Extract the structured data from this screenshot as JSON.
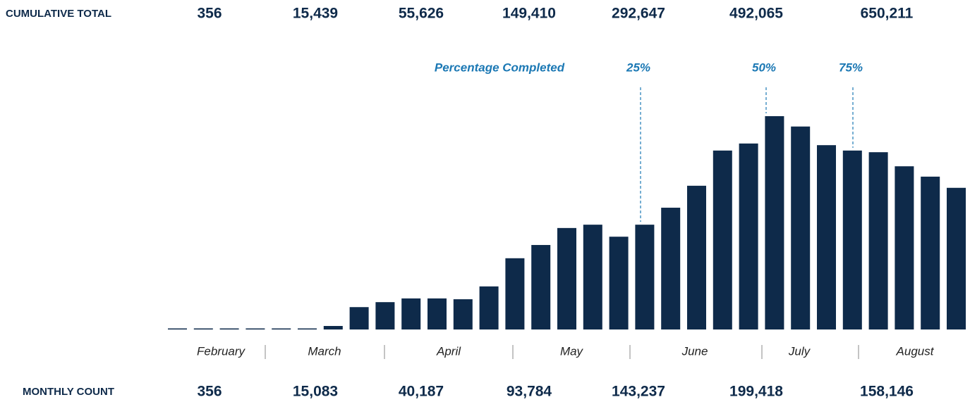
{
  "chart_data": {
    "type": "bar",
    "color": "#0e2a4a",
    "categories": [
      null,
      null,
      null,
      null,
      null,
      null,
      null,
      null,
      null,
      null,
      null,
      null,
      null,
      null,
      null,
      null,
      null,
      null,
      null,
      null,
      null,
      null,
      null,
      null,
      null,
      null,
      null,
      null,
      null,
      null,
      null
    ],
    "values": [
      100,
      100,
      100,
      100,
      100,
      100,
      850,
      5400,
      6600,
      7500,
      7500,
      7300,
      10400,
      17200,
      20400,
      24500,
      25300,
      22400,
      25300,
      29400,
      34700,
      43200,
      44900,
      51500,
      49000,
      44500,
      43200,
      42800,
      39400,
      36900,
      34200
    ],
    "months": [
      "February",
      "March",
      "April",
      "May",
      "June",
      "July",
      "August"
    ],
    "cumulative_total": {
      "label": "CUMULATIVE TOTAL",
      "values": [
        356,
        15439,
        55626,
        149410,
        292647,
        492065,
        650211
      ],
      "value_labels": [
        "356",
        "15,439",
        "55,626",
        "149,410",
        "292,647",
        "492,065",
        "650,211"
      ]
    },
    "monthly_count": {
      "label": "MONTHLY COUNT",
      "values": [
        356,
        15083,
        40187,
        93784,
        143237,
        199418,
        158146
      ],
      "value_labels": [
        "356",
        "15,083",
        "40,187",
        "93,784",
        "143,237",
        "199,418",
        "158,146"
      ]
    },
    "annotation": {
      "label": "Percentage Completed",
      "markers": [
        {
          "value": 25,
          "label": "25%"
        },
        {
          "value": 50,
          "label": "50%"
        },
        {
          "value": 75,
          "label": "75%"
        }
      ]
    }
  }
}
